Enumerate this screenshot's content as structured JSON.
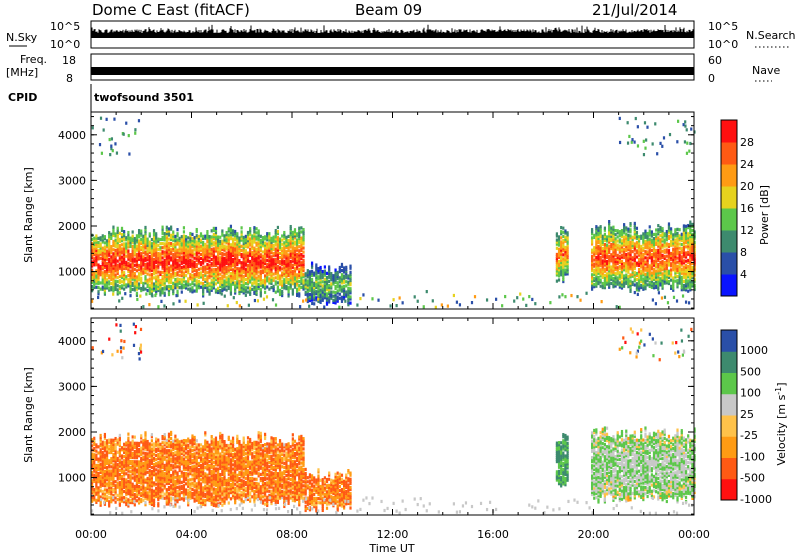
{
  "header": {
    "station": "Dome C East (fitACF)",
    "beam": "Beam 09",
    "date": "21/Jul/2014"
  },
  "strip_labels": {
    "nsky": "N.Sky",
    "nsky_top": "10^5",
    "nsky_bottom": "10^0",
    "nsearch": "N.Search",
    "nsearch_top": "10^5",
    "nsearch_bottom": "10^0",
    "freq_label_1": "Freq.",
    "freq_label_2": "[MHz]",
    "freq_top": "18",
    "freq_bottom": "8",
    "nave": "Nave",
    "nave_top": "60",
    "nave_bottom": "0",
    "cpid": "CPID",
    "cpid_name": "twofsound 3501"
  },
  "colors": {
    "power": [
      "#0a14ff",
      "#2a4fa8",
      "#3d8a6e",
      "#5cc74a",
      "#e6d21e",
      "#ff9b14",
      "#ff5a14",
      "#ff1010"
    ],
    "velocity": [
      "#ff1010",
      "#ff5a14",
      "#ff9b14",
      "#ffc24a",
      "#c8c8c8",
      "#5cc74a",
      "#3d8a6e",
      "#2a4fa8"
    ]
  },
  "chart_data": [
    {
      "type": "heatmap",
      "name": "power",
      "ylabel": "Slant Range [km]",
      "ylim": [
        180,
        4500
      ],
      "yticks": [
        "1000",
        "2000",
        "3000",
        "4000"
      ],
      "colorbar_label": "Power [dB]",
      "colorbar_ticks": [
        "4",
        "8",
        "12",
        "16",
        "20",
        "24",
        "28"
      ],
      "echo_regions": [
        {
          "t_start": 0.0,
          "t_end": 8.5,
          "r_min": 600,
          "r_max": 1900,
          "core_db": 28
        },
        {
          "t_start": 8.5,
          "t_end": 10.3,
          "r_min": 400,
          "r_max": 1100,
          "core_db": 14
        },
        {
          "t_start": 18.5,
          "t_end": 19.0,
          "r_min": 900,
          "r_max": 1900,
          "core_db": 24
        },
        {
          "t_start": 19.9,
          "t_end": 24.0,
          "r_min": 700,
          "r_max": 2000,
          "core_db": 26
        }
      ]
    },
    {
      "type": "heatmap",
      "name": "velocity",
      "ylabel": "Slant Range [km]",
      "xlabel": "Time UT",
      "ylim": [
        180,
        4500
      ],
      "yticks": [
        "1000",
        "2000",
        "3000",
        "4000"
      ],
      "colorbar_label": "Velocity [m s^-1]",
      "colorbar_ticks": [
        "1000",
        "500",
        "100",
        "25",
        "-25",
        "-100",
        "-500",
        "-1000"
      ],
      "xticks": [
        "00:00",
        "04:00",
        "08:00",
        "12:00",
        "16:00",
        "20:00",
        "00:00"
      ],
      "x_hours": [
        0,
        4,
        8,
        12,
        16,
        20,
        24
      ],
      "echo_regions": [
        {
          "t_start": 0.0,
          "t_end": 8.5,
          "r_min": 500,
          "r_max": 1900,
          "core_velocity": -100
        },
        {
          "t_start": 8.5,
          "t_end": 10.3,
          "r_min": 400,
          "r_max": 1100,
          "core_velocity": -100
        },
        {
          "t_start": 18.5,
          "t_end": 19.0,
          "r_min": 900,
          "r_max": 1900,
          "core_velocity": 500
        },
        {
          "t_start": 19.9,
          "t_end": 24.0,
          "r_min": 600,
          "r_max": 2000,
          "core_velocity": 100
        }
      ]
    }
  ]
}
